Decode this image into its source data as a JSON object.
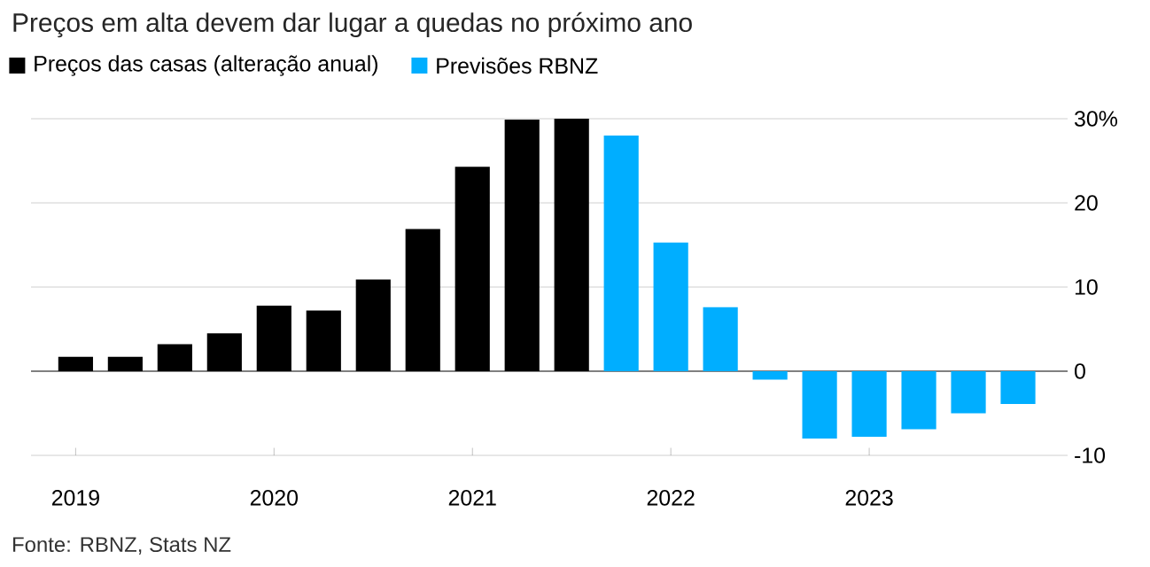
{
  "chart_data": {
    "type": "bar",
    "title": "Preços em alta devem dar lugar a quedas no próximo ano",
    "categories": [
      "2019",
      null,
      null,
      null,
      "2020",
      null,
      null,
      null,
      "2021",
      null,
      null,
      null,
      "2022",
      null,
      null,
      null,
      "2023",
      null,
      null,
      null
    ],
    "series": [
      {
        "name": "Preços das casas (alteração anual)",
        "color": "#000000",
        "values": [
          1.7,
          1.7,
          3.2,
          4.5,
          7.8,
          7.2,
          10.9,
          16.9,
          24.3,
          29.9,
          30,
          null,
          null,
          null,
          null,
          null,
          null,
          null,
          null,
          null
        ]
      },
      {
        "name": "Previsões RBNZ",
        "color": "#00aeff",
        "values": [
          null,
          null,
          null,
          null,
          null,
          null,
          null,
          null,
          null,
          null,
          null,
          28.0,
          15.3,
          7.6,
          -1.0,
          -8.0,
          -7.8,
          -6.9,
          -5.0,
          -3.9
        ]
      }
    ],
    "ylim": [
      -10,
      30
    ],
    "yticks": [
      -10,
      0,
      10,
      20,
      {
        "value": 30,
        "label": "30%"
      }
    ],
    "grid": "y",
    "legend": "top left",
    "ref_lines": [
      {
        "axis": "y",
        "value": 0,
        "color": "#808080"
      }
    ],
    "annotations": [
      "Fonte: RBNZ, Stats NZ"
    ]
  }
}
